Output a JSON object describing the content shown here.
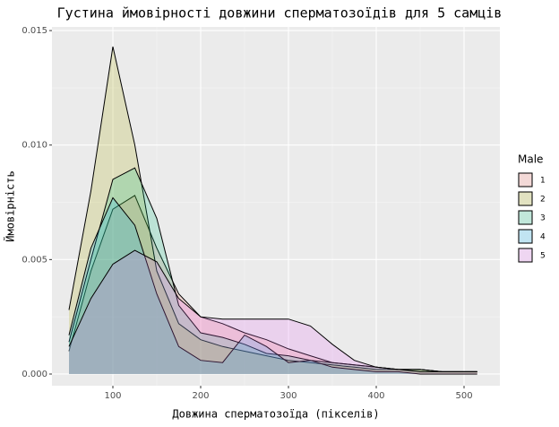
{
  "chart_data": {
    "type": "density",
    "title": "Густина ймовірності довжини сперматозоїдів для 5 самців",
    "x_label": "Довжина сперматозоїда (пікселів)",
    "y_label": "Ймовірність",
    "legend_title": "Male",
    "legend_position": "right",
    "grid": true,
    "x": [
      50,
      75,
      100,
      125,
      150,
      175,
      200,
      225,
      250,
      275,
      300,
      325,
      350,
      375,
      400,
      425,
      450,
      475,
      500,
      515
    ],
    "series": [
      {
        "name": "1",
        "color": "#F8766D",
        "values": [
          0.001,
          0.0045,
          0.0072,
          0.0078,
          0.0055,
          0.0035,
          0.0025,
          0.0022,
          0.0018,
          0.0015,
          0.0011,
          0.0008,
          0.0005,
          0.0004,
          0.0003,
          0.0002,
          0.0002,
          0.0001,
          0.0001,
          0.0001
        ]
      },
      {
        "name": "2",
        "color": "#A3A500",
        "values": [
          0.0028,
          0.008,
          0.0143,
          0.01,
          0.0045,
          0.0022,
          0.0015,
          0.0012,
          0.001,
          0.0008,
          0.0006,
          0.0005,
          0.0004,
          0.0003,
          0.0002,
          0.0002,
          0.0002,
          0.0001,
          0.0001,
          0.0001
        ]
      },
      {
        "name": "3",
        "color": "#00BF7D",
        "values": [
          0.0014,
          0.005,
          0.0085,
          0.009,
          0.0068,
          0.003,
          0.0018,
          0.0016,
          0.0013,
          0.0009,
          0.0008,
          0.0006,
          0.0005,
          0.0004,
          0.0003,
          0.0002,
          0.0002,
          0.0001,
          0.0001,
          0.0001
        ]
      },
      {
        "name": "4",
        "color": "#00B0F6",
        "values": [
          0.0017,
          0.0055,
          0.0077,
          0.0065,
          0.0035,
          0.0012,
          0.0006,
          0.0005,
          0.0017,
          0.0012,
          0.0005,
          0.0006,
          0.0003,
          0.0002,
          0.0001,
          0.0001,
          0,
          0,
          0,
          0
        ]
      },
      {
        "name": "5",
        "color": "#E76BF3",
        "values": [
          0.0012,
          0.0033,
          0.0048,
          0.0054,
          0.0049,
          0.0033,
          0.0025,
          0.0024,
          0.0024,
          0.0024,
          0.0024,
          0.0021,
          0.0013,
          0.0006,
          0.0003,
          0.0002,
          0.0001,
          0.0001,
          0.0001,
          0.0001
        ]
      }
    ],
    "xlim": [
      30.6,
      540.8
    ],
    "ylim": [
      -0.00051,
      0.01516
    ],
    "xticks": [
      100,
      200,
      300,
      400,
      500
    ],
    "yticks": [
      {
        "value": 0,
        "label": "0.000"
      },
      {
        "value": 0.005,
        "label": "0.005"
      },
      {
        "value": 0.01,
        "label": "0.010"
      },
      {
        "value": 0.015,
        "label": "0.015"
      }
    ]
  }
}
